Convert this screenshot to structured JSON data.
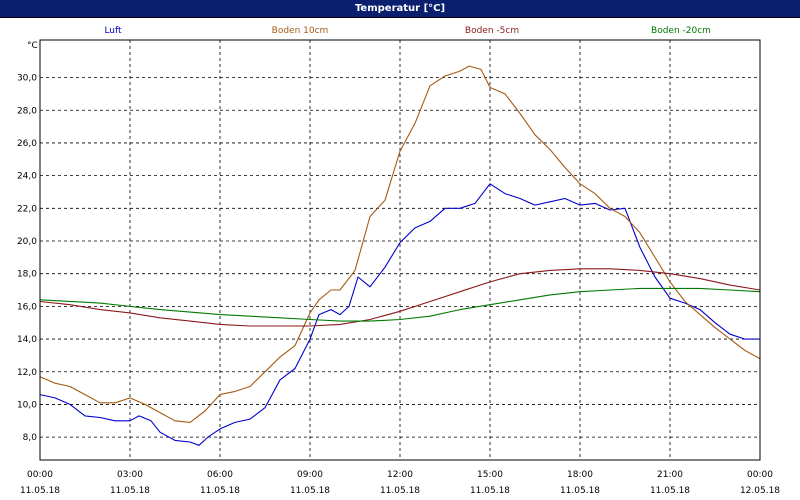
{
  "title": "Temperatur [°C]",
  "unit": "°C",
  "chart_data": {
    "type": "line",
    "title": "Temperatur [°C]",
    "ylabel": "°C",
    "xlabel": "",
    "ylim": [
      6.6,
      32.3
    ],
    "xlim": [
      0,
      24
    ],
    "grid": true,
    "legend_placement": "top",
    "yticks": [
      8,
      10,
      12,
      14,
      16,
      18,
      20,
      22,
      24,
      26,
      28,
      30
    ],
    "ytick_labels": [
      "8,0",
      "10,0",
      "12,0",
      "14,0",
      "16,0",
      "18,0",
      "20,0",
      "22,0",
      "24,0",
      "26,0",
      "28,0",
      "30,0"
    ],
    "xticks": [
      0,
      3,
      6,
      9,
      12,
      15,
      18,
      21,
      24
    ],
    "xtick_labels": [
      {
        "time": "00:00",
        "date": "11.05.18"
      },
      {
        "time": "03:00",
        "date": "11.05.18"
      },
      {
        "time": "06:00",
        "date": "11.05.18"
      },
      {
        "time": "09:00",
        "date": "11.05.18"
      },
      {
        "time": "12:00",
        "date": "11.05.18"
      },
      {
        "time": "15:00",
        "date": "11.05.18"
      },
      {
        "time": "18:00",
        "date": "11.05.18"
      },
      {
        "time": "21:00",
        "date": "11.05.18"
      },
      {
        "time": "00:00",
        "date": "12.05.18"
      }
    ],
    "series": [
      {
        "name": "Luft",
        "color": "#0000cc",
        "points": [
          [
            0,
            10.6
          ],
          [
            0.5,
            10.4
          ],
          [
            1,
            10.0
          ],
          [
            1.5,
            9.3
          ],
          [
            2,
            9.2
          ],
          [
            2.5,
            9.0
          ],
          [
            3,
            9.0
          ],
          [
            3.3,
            9.3
          ],
          [
            3.7,
            9.0
          ],
          [
            4,
            8.3
          ],
          [
            4.5,
            7.8
          ],
          [
            5,
            7.7
          ],
          [
            5.3,
            7.5
          ],
          [
            5.6,
            8.0
          ],
          [
            6,
            8.5
          ],
          [
            6.5,
            8.9
          ],
          [
            7,
            9.1
          ],
          [
            7.5,
            9.8
          ],
          [
            8,
            11.5
          ],
          [
            8.5,
            12.2
          ],
          [
            9,
            14.0
          ],
          [
            9.3,
            15.5
          ],
          [
            9.7,
            15.8
          ],
          [
            10,
            15.5
          ],
          [
            10.3,
            16.0
          ],
          [
            10.6,
            17.8
          ],
          [
            11,
            17.2
          ],
          [
            11.5,
            18.4
          ],
          [
            12,
            19.9
          ],
          [
            12.5,
            20.8
          ],
          [
            13,
            21.2
          ],
          [
            13.5,
            22.0
          ],
          [
            14,
            22.0
          ],
          [
            14.5,
            22.3
          ],
          [
            15,
            23.5
          ],
          [
            15.5,
            22.9
          ],
          [
            16,
            22.6
          ],
          [
            16.5,
            22.2
          ],
          [
            17,
            22.4
          ],
          [
            17.5,
            22.6
          ],
          [
            18,
            22.2
          ],
          [
            18.5,
            22.3
          ],
          [
            19,
            21.9
          ],
          [
            19.5,
            22.0
          ],
          [
            20,
            19.6
          ],
          [
            20.5,
            17.8
          ],
          [
            21,
            16.5
          ],
          [
            21.5,
            16.2
          ],
          [
            22,
            15.8
          ],
          [
            22.5,
            15.0
          ],
          [
            23,
            14.3
          ],
          [
            23.5,
            14.0
          ],
          [
            24,
            14.0
          ]
        ]
      },
      {
        "name": "Boden 10cm",
        "color": "#a65a14",
        "points": [
          [
            0,
            11.7
          ],
          [
            0.5,
            11.3
          ],
          [
            1,
            11.1
          ],
          [
            1.5,
            10.6
          ],
          [
            2,
            10.1
          ],
          [
            2.5,
            10.1
          ],
          [
            3,
            10.4
          ],
          [
            3.5,
            10.0
          ],
          [
            4,
            9.5
          ],
          [
            4.5,
            9.0
          ],
          [
            5,
            8.9
          ],
          [
            5.5,
            9.6
          ],
          [
            6,
            10.6
          ],
          [
            6.5,
            10.8
          ],
          [
            7,
            11.1
          ],
          [
            7.5,
            12.0
          ],
          [
            8,
            12.9
          ],
          [
            8.5,
            13.6
          ],
          [
            9,
            15.6
          ],
          [
            9.3,
            16.4
          ],
          [
            9.7,
            17.0
          ],
          [
            10,
            17.0
          ],
          [
            10.5,
            18.2
          ],
          [
            11,
            21.5
          ],
          [
            11.5,
            22.5
          ],
          [
            12,
            25.5
          ],
          [
            12.5,
            27.2
          ],
          [
            13,
            29.5
          ],
          [
            13.5,
            30.1
          ],
          [
            14,
            30.4
          ],
          [
            14.3,
            30.7
          ],
          [
            14.7,
            30.5
          ],
          [
            15,
            29.4
          ],
          [
            15.5,
            29.0
          ],
          [
            16,
            27.8
          ],
          [
            16.5,
            26.5
          ],
          [
            17,
            25.6
          ],
          [
            17.5,
            24.5
          ],
          [
            18,
            23.5
          ],
          [
            18.5,
            22.9
          ],
          [
            19,
            22.0
          ],
          [
            19.5,
            21.5
          ],
          [
            20,
            20.5
          ],
          [
            20.5,
            19.0
          ],
          [
            21,
            17.5
          ],
          [
            21.5,
            16.3
          ],
          [
            22,
            15.5
          ],
          [
            22.5,
            14.7
          ],
          [
            23,
            14.0
          ],
          [
            23.5,
            13.3
          ],
          [
            24,
            12.8
          ]
        ]
      },
      {
        "name": "Boden -5cm",
        "color": "#8b1a1a",
        "points": [
          [
            0,
            16.3
          ],
          [
            1,
            16.1
          ],
          [
            2,
            15.8
          ],
          [
            3,
            15.6
          ],
          [
            4,
            15.3
          ],
          [
            5,
            15.1
          ],
          [
            6,
            14.9
          ],
          [
            7,
            14.8
          ],
          [
            8,
            14.8
          ],
          [
            9,
            14.8
          ],
          [
            10,
            14.9
          ],
          [
            11,
            15.2
          ],
          [
            12,
            15.7
          ],
          [
            13,
            16.3
          ],
          [
            14,
            16.9
          ],
          [
            15,
            17.5
          ],
          [
            16,
            18.0
          ],
          [
            17,
            18.2
          ],
          [
            18,
            18.3
          ],
          [
            19,
            18.3
          ],
          [
            20,
            18.2
          ],
          [
            21,
            18.0
          ],
          [
            22,
            17.7
          ],
          [
            23,
            17.3
          ],
          [
            24,
            17.0
          ]
        ]
      },
      {
        "name": "Boden -20cm",
        "color": "#007a00",
        "points": [
          [
            0,
            16.4
          ],
          [
            2,
            16.2
          ],
          [
            4,
            15.8
          ],
          [
            6,
            15.5
          ],
          [
            8,
            15.3
          ],
          [
            9,
            15.2
          ],
          [
            10,
            15.1
          ],
          [
            11,
            15.1
          ],
          [
            12,
            15.2
          ],
          [
            13,
            15.4
          ],
          [
            14,
            15.8
          ],
          [
            15,
            16.1
          ],
          [
            16,
            16.4
          ],
          [
            17,
            16.7
          ],
          [
            18,
            16.9
          ],
          [
            19,
            17.0
          ],
          [
            20,
            17.1
          ],
          [
            21,
            17.1
          ],
          [
            22,
            17.1
          ],
          [
            23,
            17.0
          ],
          [
            24,
            16.9
          ]
        ]
      }
    ]
  }
}
